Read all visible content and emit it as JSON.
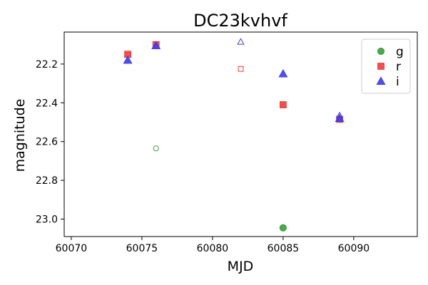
{
  "chart_data": {
    "type": "scatter",
    "title": "DC23kvhvf",
    "xlabel": "MJD",
    "ylabel": "magnitude",
    "xlim": [
      60069.5,
      60094.5
    ],
    "ylim": [
      23.09,
      22.035
    ],
    "y_inverted": true,
    "xticks": [
      60070,
      60075,
      60080,
      60085,
      60090
    ],
    "yticks": [
      22.2,
      22.4,
      22.6,
      22.8,
      23.0
    ],
    "xtick_labels": [
      "60070",
      "60075",
      "60080",
      "60085",
      "60090"
    ],
    "ytick_labels": [
      "22.2",
      "22.4",
      "22.6",
      "22.8",
      "23.0"
    ],
    "legend_position": "upper right",
    "series": [
      {
        "name": "g",
        "marker": "circle",
        "color": "#3a9e3a",
        "points": [
          {
            "x": 60085.0,
            "y": 23.045,
            "filled": true
          },
          {
            "x": 60076.0,
            "y": 22.635,
            "filled": false
          }
        ]
      },
      {
        "name": "r",
        "marker": "square",
        "color": "#f03c3c",
        "points": [
          {
            "x": 60074.0,
            "y": 22.15,
            "filled": true
          },
          {
            "x": 60076.0,
            "y": 22.1,
            "filled": true
          },
          {
            "x": 60085.0,
            "y": 22.41,
            "filled": true
          },
          {
            "x": 60089.0,
            "y": 22.485,
            "filled": true
          },
          {
            "x": 60082.0,
            "y": 22.225,
            "filled": false
          }
        ]
      },
      {
        "name": "i",
        "marker": "triangle",
        "color": "#3c3cf0",
        "points": [
          {
            "x": 60074.0,
            "y": 22.18,
            "filled": true
          },
          {
            "x": 60076.0,
            "y": 22.105,
            "filled": true
          },
          {
            "x": 60085.0,
            "y": 22.25,
            "filled": true
          },
          {
            "x": 60089.0,
            "y": 22.48,
            "filled": true
          },
          {
            "x": 60082.0,
            "y": 22.085,
            "filled": false
          },
          {
            "x": 60089.0,
            "y": 22.465,
            "filled": false
          }
        ]
      }
    ]
  }
}
